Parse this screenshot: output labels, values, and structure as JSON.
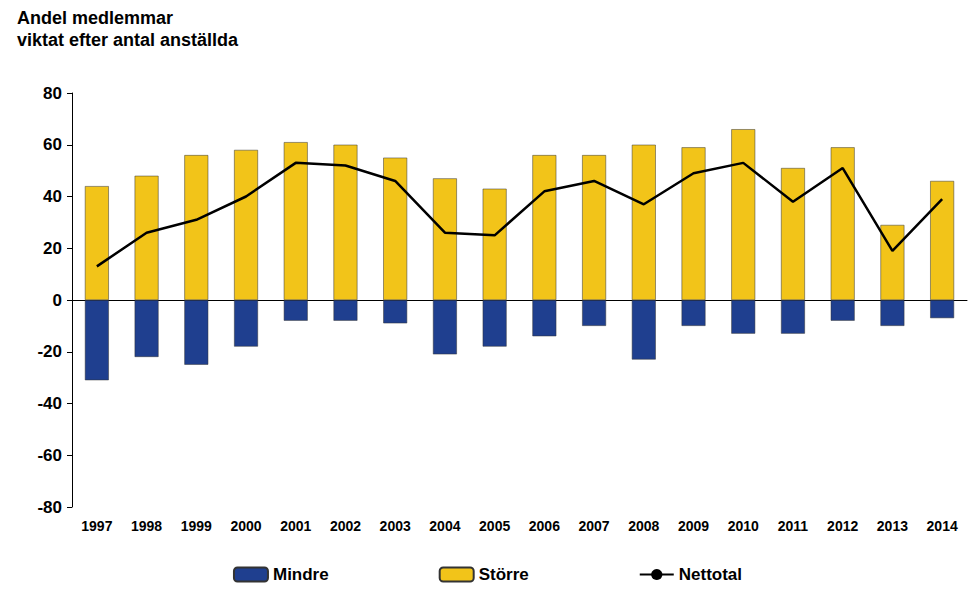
{
  "chart_data": {
    "type": "bar",
    "title": "Andel medlemmar",
    "subtitle": "viktat efter antal anställda",
    "categories": [
      "1997",
      "1998",
      "1999",
      "2000",
      "2001",
      "2002",
      "2003",
      "2004",
      "2005",
      "2006",
      "2007",
      "2008",
      "2009",
      "2010",
      "2011",
      "2012",
      "2013",
      "2014"
    ],
    "series": [
      {
        "name": "Mindre",
        "type": "bar",
        "color": "#1f3f8f",
        "values": [
          -31,
          -22,
          -25,
          -18,
          -8,
          -8,
          -9,
          -21,
          -18,
          -14,
          -10,
          -23,
          -10,
          -13,
          -13,
          -8,
          -10,
          -7
        ]
      },
      {
        "name": "Större",
        "type": "bar",
        "color": "#f2c419",
        "values": [
          44,
          48,
          56,
          58,
          61,
          60,
          55,
          47,
          43,
          56,
          56,
          60,
          59,
          66,
          51,
          59,
          29,
          46
        ]
      },
      {
        "name": "Nettotal",
        "type": "line",
        "color": "#000000",
        "values": [
          13,
          26,
          31,
          40,
          53,
          52,
          46,
          26,
          25,
          42,
          46,
          37,
          49,
          53,
          38,
          51,
          19,
          39
        ]
      }
    ],
    "stacked": true,
    "ylim": [
      -80,
      80
    ],
    "yticks": [
      -80,
      -60,
      -40,
      -20,
      0,
      20,
      40,
      60,
      80
    ],
    "grid": false,
    "legend": "bottom"
  }
}
